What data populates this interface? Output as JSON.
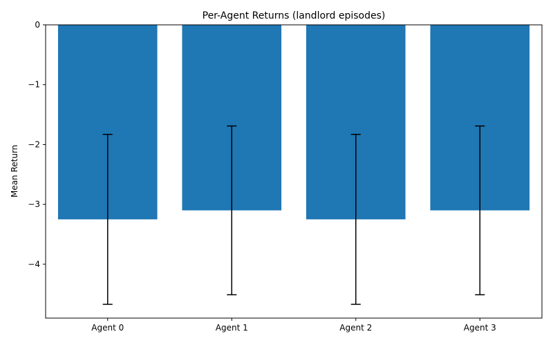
{
  "chart_data": {
    "type": "bar",
    "title": "Per-Agent Returns (landlord episodes)",
    "xlabel": "",
    "ylabel": "Mean Return",
    "categories": [
      "Agent 0",
      "Agent 1",
      "Agent 2",
      "Agent 3"
    ],
    "values": [
      -3.25,
      -3.1,
      -3.25,
      -3.1
    ],
    "errors": [
      1.42,
      1.41,
      1.42,
      1.41
    ],
    "ylim": [
      -4.9,
      0
    ],
    "yticks": [
      0,
      -1,
      -2,
      -3,
      -4
    ],
    "ytick_labels": [
      "0",
      "−1",
      "−2",
      "−3",
      "−4"
    ],
    "bar_color": "#1f77b4",
    "error_color": "#000000",
    "grid": false,
    "legend": false
  }
}
